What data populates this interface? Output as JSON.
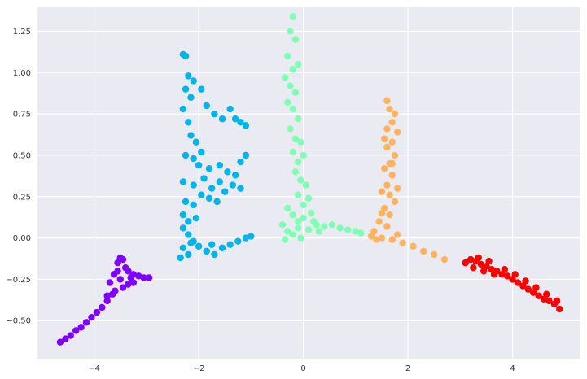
{
  "chart_data": {
    "type": "scatter",
    "title": "",
    "xlabel": "",
    "ylabel": "",
    "xlim": [
      -5.1,
      5.3
    ],
    "ylim": [
      -0.73,
      1.4
    ],
    "x_ticks": [
      -4,
      -2,
      0,
      2,
      4
    ],
    "x_tick_labels": [
      "−4",
      "−2",
      "0",
      "2",
      "4"
    ],
    "y_ticks": [
      -0.5,
      -0.25,
      0.0,
      0.25,
      0.5,
      0.75,
      1.0,
      1.25
    ],
    "y_tick_labels": [
      "−0.50",
      "−0.25",
      "0.00",
      "0.25",
      "0.50",
      "0.75",
      "1.00",
      "1.25"
    ],
    "grid": true,
    "legend": "none",
    "colors": {
      "background": "#eaeaf2",
      "grid": "#ffffff"
    },
    "series": [
      {
        "color": "#8000ff",
        "points": [
          [
            -4.65,
            -0.63
          ],
          [
            -4.55,
            -0.61
          ],
          [
            -4.45,
            -0.59
          ],
          [
            -4.35,
            -0.56
          ],
          [
            -4.25,
            -0.54
          ],
          [
            -4.15,
            -0.51
          ],
          [
            -4.05,
            -0.48
          ],
          [
            -3.95,
            -0.45
          ],
          [
            -3.85,
            -0.42
          ],
          [
            -3.75,
            -0.38
          ],
          [
            -3.65,
            -0.34
          ],
          [
            -3.7,
            -0.27
          ],
          [
            -3.62,
            -0.22
          ],
          [
            -3.55,
            -0.15
          ],
          [
            -3.5,
            -0.12
          ],
          [
            -3.45,
            -0.13
          ],
          [
            -3.4,
            -0.18
          ],
          [
            -3.35,
            -0.2
          ],
          [
            -3.25,
            -0.22
          ],
          [
            -3.15,
            -0.23
          ],
          [
            -3.05,
            -0.24
          ],
          [
            -2.95,
            -0.24
          ],
          [
            -3.5,
            -0.25
          ],
          [
            -3.45,
            -0.3
          ],
          [
            -3.35,
            -0.28
          ],
          [
            -3.6,
            -0.32
          ],
          [
            -3.25,
            -0.27
          ],
          [
            -3.55,
            -0.2
          ],
          [
            -3.3,
            -0.24
          ],
          [
            -3.75,
            -0.35
          ]
        ]
      },
      {
        "color": "#00b4ec",
        "points": [
          [
            -2.3,
            1.11
          ],
          [
            -2.25,
            1.1
          ],
          [
            -2.2,
            0.98
          ],
          [
            -2.1,
            0.95
          ],
          [
            -2.25,
            0.9
          ],
          [
            -2.15,
            0.85
          ],
          [
            -1.95,
            0.9
          ],
          [
            -1.85,
            0.8
          ],
          [
            -1.7,
            0.75
          ],
          [
            -1.55,
            0.72
          ],
          [
            -1.4,
            0.78
          ],
          [
            -1.3,
            0.72
          ],
          [
            -1.2,
            0.7
          ],
          [
            -1.1,
            0.68
          ],
          [
            -2.3,
            0.78
          ],
          [
            -2.2,
            0.7
          ],
          [
            -2.15,
            0.62
          ],
          [
            -2.05,
            0.58
          ],
          [
            -1.95,
            0.52
          ],
          [
            -2.25,
            0.5
          ],
          [
            -2.1,
            0.48
          ],
          [
            -2.0,
            0.44
          ],
          [
            -1.8,
            0.42
          ],
          [
            -1.6,
            0.44
          ],
          [
            -1.45,
            0.4
          ],
          [
            -1.3,
            0.38
          ],
          [
            -1.2,
            0.46
          ],
          [
            -1.1,
            0.5
          ],
          [
            -2.3,
            0.34
          ],
          [
            -2.1,
            0.32
          ],
          [
            -1.9,
            0.36
          ],
          [
            -1.75,
            0.3
          ],
          [
            -1.6,
            0.34
          ],
          [
            -1.5,
            0.28
          ],
          [
            -1.35,
            0.32
          ],
          [
            -1.2,
            0.3
          ],
          [
            -2.25,
            0.22
          ],
          [
            -2.1,
            0.2
          ],
          [
            -1.95,
            0.26
          ],
          [
            -1.8,
            0.24
          ],
          [
            -1.65,
            0.22
          ],
          [
            -2.3,
            0.14
          ],
          [
            -2.2,
            0.1
          ],
          [
            -2.05,
            0.12
          ],
          [
            -2.3,
            0.06
          ],
          [
            -2.2,
            0.02
          ],
          [
            -2.1,
            -0.02
          ],
          [
            -2.3,
            -0.06
          ],
          [
            -2.2,
            -0.1
          ],
          [
            -2.35,
            -0.12
          ],
          [
            -2.0,
            -0.05
          ],
          [
            -1.85,
            -0.08
          ],
          [
            -1.7,
            -0.1
          ],
          [
            -1.55,
            -0.06
          ],
          [
            -1.4,
            -0.04
          ],
          [
            -1.25,
            -0.02
          ],
          [
            -1.1,
            0.0
          ],
          [
            -1.0,
            0.01
          ],
          [
            -2.15,
            -0.03
          ],
          [
            -1.75,
            -0.04
          ]
        ]
      },
      {
        "color": "#80ffb4",
        "points": [
          [
            -0.2,
            1.34
          ],
          [
            -0.25,
            1.25
          ],
          [
            -0.15,
            1.2
          ],
          [
            -0.3,
            1.1
          ],
          [
            -0.2,
            1.02
          ],
          [
            -0.1,
            1.05
          ],
          [
            -0.35,
            0.97
          ],
          [
            -0.25,
            0.92
          ],
          [
            -0.15,
            0.88
          ],
          [
            -0.3,
            0.82
          ],
          [
            -0.2,
            0.78
          ],
          [
            -0.1,
            0.72
          ],
          [
            -0.25,
            0.66
          ],
          [
            -0.15,
            0.6
          ],
          [
            -0.05,
            0.58
          ],
          [
            -0.2,
            0.52
          ],
          [
            -0.1,
            0.46
          ],
          [
            0.0,
            0.5
          ],
          [
            -0.15,
            0.4
          ],
          [
            -0.05,
            0.35
          ],
          [
            0.05,
            0.32
          ],
          [
            -0.1,
            0.26
          ],
          [
            0.0,
            0.2
          ],
          [
            0.1,
            0.24
          ],
          [
            -0.3,
            0.18
          ],
          [
            -0.2,
            0.14
          ],
          [
            -0.1,
            0.1
          ],
          [
            0.0,
            0.12
          ],
          [
            0.15,
            0.15
          ],
          [
            -0.4,
            0.08
          ],
          [
            -0.3,
            0.04
          ],
          [
            -0.2,
            0.02
          ],
          [
            -0.1,
            0.06
          ],
          [
            0.1,
            0.05
          ],
          [
            0.25,
            0.08
          ],
          [
            0.4,
            0.07
          ],
          [
            0.55,
            0.08
          ],
          [
            0.7,
            0.06
          ],
          [
            0.85,
            0.05
          ],
          [
            1.0,
            0.04
          ],
          [
            1.1,
            0.03
          ],
          [
            0.3,
            0.04
          ],
          [
            -0.35,
            -0.01
          ],
          [
            -0.05,
            0.0
          ],
          [
            0.2,
            0.1
          ]
        ]
      },
      {
        "color": "#ffb360",
        "points": [
          [
            1.6,
            0.83
          ],
          [
            1.65,
            0.78
          ],
          [
            1.75,
            0.75
          ],
          [
            1.7,
            0.7
          ],
          [
            1.6,
            0.66
          ],
          [
            1.8,
            0.64
          ],
          [
            1.7,
            0.58
          ],
          [
            1.6,
            0.55
          ],
          [
            1.75,
            0.5
          ],
          [
            1.65,
            0.45
          ],
          [
            1.55,
            0.42
          ],
          [
            1.7,
            0.38
          ],
          [
            1.6,
            0.32
          ],
          [
            1.5,
            0.28
          ],
          [
            1.65,
            0.26
          ],
          [
            1.75,
            0.22
          ],
          [
            1.55,
            0.18
          ],
          [
            1.65,
            0.14
          ],
          [
            1.45,
            0.1
          ],
          [
            1.6,
            0.07
          ],
          [
            1.35,
            0.04
          ],
          [
            1.3,
            0.01
          ],
          [
            1.5,
            0.0
          ],
          [
            1.7,
            -0.01
          ],
          [
            1.9,
            -0.03
          ],
          [
            2.1,
            -0.05
          ],
          [
            2.3,
            -0.08
          ],
          [
            2.5,
            -0.1
          ],
          [
            2.7,
            -0.13
          ],
          [
            1.4,
            -0.01
          ],
          [
            1.8,
            0.02
          ],
          [
            1.5,
            0.15
          ],
          [
            1.7,
            0.45
          ],
          [
            1.8,
            0.3
          ],
          [
            1.55,
            0.6
          ]
        ]
      },
      {
        "color": "#ff0000",
        "points": [
          [
            3.1,
            -0.15
          ],
          [
            3.2,
            -0.13
          ],
          [
            3.3,
            -0.14
          ],
          [
            3.4,
            -0.16
          ],
          [
            3.5,
            -0.17
          ],
          [
            3.6,
            -0.19
          ],
          [
            3.7,
            -0.2
          ],
          [
            3.8,
            -0.22
          ],
          [
            3.9,
            -0.23
          ],
          [
            4.0,
            -0.25
          ],
          [
            4.1,
            -0.27
          ],
          [
            4.2,
            -0.29
          ],
          [
            4.3,
            -0.31
          ],
          [
            4.4,
            -0.33
          ],
          [
            4.5,
            -0.35
          ],
          [
            4.6,
            -0.37
          ],
          [
            4.7,
            -0.38
          ],
          [
            4.8,
            -0.4
          ],
          [
            4.9,
            -0.43
          ],
          [
            3.25,
            -0.18
          ],
          [
            3.45,
            -0.2
          ],
          [
            3.65,
            -0.22
          ],
          [
            3.85,
            -0.19
          ],
          [
            4.05,
            -0.22
          ],
          [
            4.25,
            -0.26
          ],
          [
            4.45,
            -0.3
          ],
          [
            4.65,
            -0.34
          ],
          [
            3.35,
            -0.12
          ],
          [
            3.55,
            -0.14
          ],
          [
            4.85,
            -0.38
          ]
        ]
      }
    ]
  }
}
